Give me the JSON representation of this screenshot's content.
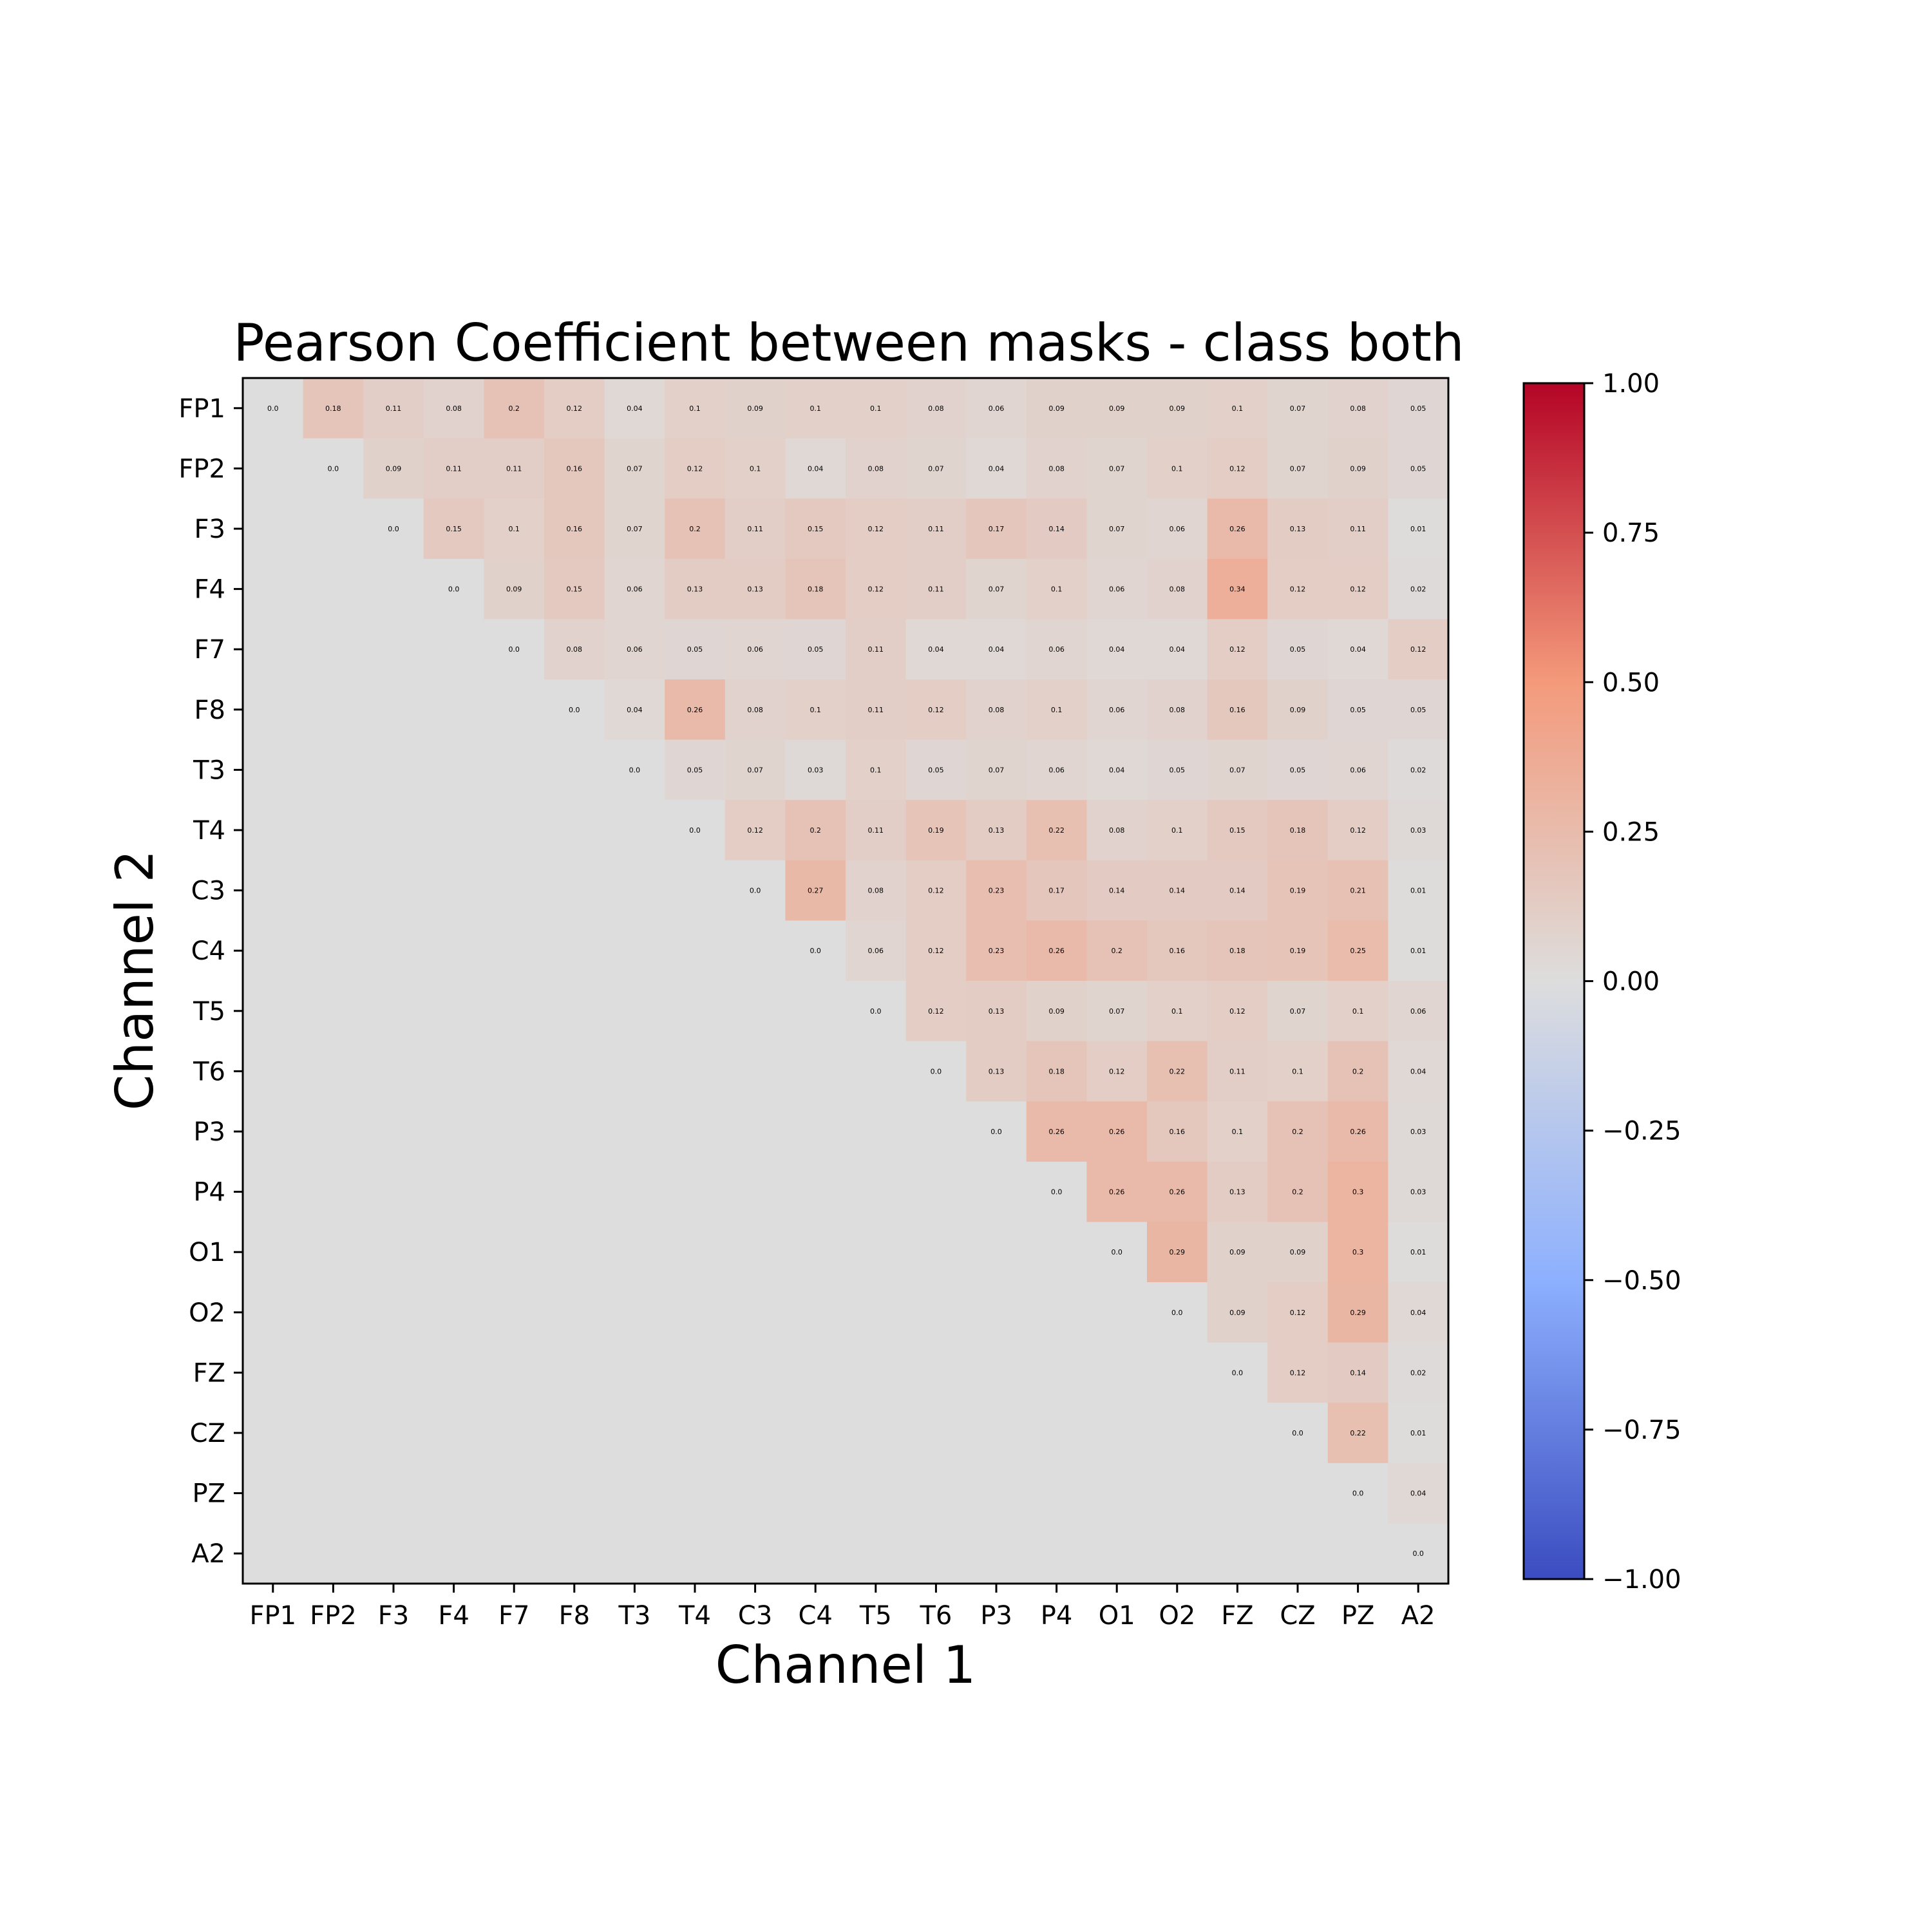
{
  "chart_data": {
    "type": "heatmap",
    "title": "Pearson Coefficient between masks - class both",
    "xlabel": "Channel 1",
    "ylabel": "Channel 2",
    "x_categories": [
      "FP1",
      "FP2",
      "F3",
      "F4",
      "F7",
      "F8",
      "T3",
      "T4",
      "C3",
      "C4",
      "T5",
      "T6",
      "P3",
      "P4",
      "O1",
      "O2",
      "FZ",
      "CZ",
      "PZ",
      "A2"
    ],
    "y_categories": [
      "FP1",
      "FP2",
      "F3",
      "F4",
      "F7",
      "F8",
      "T3",
      "T4",
      "C3",
      "C4",
      "T5",
      "T6",
      "P3",
      "P4",
      "O1",
      "O2",
      "FZ",
      "CZ",
      "PZ",
      "A2"
    ],
    "colormap": "coolwarm",
    "vmin": -1.0,
    "vmax": 1.0,
    "colorbar_ticks": [
      "1.00",
      "0.75",
      "0.50",
      "0.25",
      "0.00",
      "−0.25",
      "−0.50",
      "−0.75",
      "−1.00"
    ],
    "colorbar_tick_values": [
      1.0,
      0.75,
      0.5,
      0.25,
      0.0,
      -0.25,
      -0.5,
      -0.75,
      -1.0
    ],
    "values": [
      [
        "0.0",
        "0.18",
        "0.11",
        "0.08",
        "0.2",
        "0.12",
        "0.04",
        "0.1",
        "0.09",
        "0.1",
        "0.1",
        "0.08",
        "0.06",
        "0.09",
        "0.09",
        "0.09",
        "0.1",
        "0.07",
        "0.08",
        "0.05"
      ],
      [
        null,
        "0.0",
        "0.09",
        "0.11",
        "0.11",
        "0.16",
        "0.07",
        "0.12",
        "0.1",
        "0.04",
        "0.08",
        "0.07",
        "0.04",
        "0.08",
        "0.07",
        "0.1",
        "0.12",
        "0.07",
        "0.09",
        "0.05"
      ],
      [
        null,
        null,
        "0.0",
        "0.15",
        "0.1",
        "0.16",
        "0.07",
        "0.2",
        "0.11",
        "0.15",
        "0.12",
        "0.11",
        "0.17",
        "0.14",
        "0.07",
        "0.06",
        "0.26",
        "0.13",
        "0.11",
        "0.01"
      ],
      [
        null,
        null,
        null,
        "0.0",
        "0.09",
        "0.15",
        "0.06",
        "0.13",
        "0.13",
        "0.18",
        "0.12",
        "0.11",
        "0.07",
        "0.1",
        "0.06",
        "0.08",
        "0.34",
        "0.12",
        "0.12",
        "0.02"
      ],
      [
        null,
        null,
        null,
        null,
        "0.0",
        "0.08",
        "0.06",
        "0.05",
        "0.06",
        "0.05",
        "0.11",
        "0.04",
        "0.04",
        "0.06",
        "0.04",
        "0.04",
        "0.12",
        "0.05",
        "0.04",
        "0.12"
      ],
      [
        null,
        null,
        null,
        null,
        null,
        "0.0",
        "0.04",
        "0.26",
        "0.08",
        "0.1",
        "0.11",
        "0.12",
        "0.08",
        "0.1",
        "0.06",
        "0.08",
        "0.16",
        "0.09",
        "0.05",
        "0.05"
      ],
      [
        null,
        null,
        null,
        null,
        null,
        null,
        "0.0",
        "0.05",
        "0.07",
        "0.03",
        "0.1",
        "0.05",
        "0.07",
        "0.06",
        "0.04",
        "0.05",
        "0.07",
        "0.05",
        "0.06",
        "0.02"
      ],
      [
        null,
        null,
        null,
        null,
        null,
        null,
        null,
        "0.0",
        "0.12",
        "0.2",
        "0.11",
        "0.19",
        "0.13",
        "0.22",
        "0.08",
        "0.1",
        "0.15",
        "0.18",
        "0.12",
        "0.03"
      ],
      [
        null,
        null,
        null,
        null,
        null,
        null,
        null,
        null,
        "0.0",
        "0.27",
        "0.08",
        "0.12",
        "0.23",
        "0.17",
        "0.14",
        "0.14",
        "0.14",
        "0.19",
        "0.21",
        "0.01"
      ],
      [
        null,
        null,
        null,
        null,
        null,
        null,
        null,
        null,
        null,
        "0.0",
        "0.06",
        "0.12",
        "0.23",
        "0.26",
        "0.2",
        "0.16",
        "0.18",
        "0.19",
        "0.25",
        "0.01"
      ],
      [
        null,
        null,
        null,
        null,
        null,
        null,
        null,
        null,
        null,
        null,
        "0.0",
        "0.12",
        "0.13",
        "0.09",
        "0.07",
        "0.1",
        "0.12",
        "0.07",
        "0.1",
        "0.06"
      ],
      [
        null,
        null,
        null,
        null,
        null,
        null,
        null,
        null,
        null,
        null,
        null,
        "0.0",
        "0.13",
        "0.18",
        "0.12",
        "0.22",
        "0.11",
        "0.1",
        "0.2",
        "0.04"
      ],
      [
        null,
        null,
        null,
        null,
        null,
        null,
        null,
        null,
        null,
        null,
        null,
        null,
        "0.0",
        "0.26",
        "0.26",
        "0.16",
        "0.1",
        "0.2",
        "0.26",
        "0.03"
      ],
      [
        null,
        null,
        null,
        null,
        null,
        null,
        null,
        null,
        null,
        null,
        null,
        null,
        null,
        "0.0",
        "0.26",
        "0.26",
        "0.13",
        "0.2",
        "0.3",
        "0.03"
      ],
      [
        null,
        null,
        null,
        null,
        null,
        null,
        null,
        null,
        null,
        null,
        null,
        null,
        null,
        null,
        "0.0",
        "0.29",
        "0.09",
        "0.09",
        "0.3",
        "0.01"
      ],
      [
        null,
        null,
        null,
        null,
        null,
        null,
        null,
        null,
        null,
        null,
        null,
        null,
        null,
        null,
        null,
        "0.0",
        "0.09",
        "0.12",
        "0.29",
        "0.04"
      ],
      [
        null,
        null,
        null,
        null,
        null,
        null,
        null,
        null,
        null,
        null,
        null,
        null,
        null,
        null,
        null,
        null,
        "0.0",
        "0.12",
        "0.14",
        "0.02"
      ],
      [
        null,
        null,
        null,
        null,
        null,
        null,
        null,
        null,
        null,
        null,
        null,
        null,
        null,
        null,
        null,
        null,
        null,
        "0.0",
        "0.22",
        "0.01"
      ],
      [
        null,
        null,
        null,
        null,
        null,
        null,
        null,
        null,
        null,
        null,
        null,
        null,
        null,
        null,
        null,
        null,
        null,
        null,
        "0.0",
        "0.04"
      ],
      [
        null,
        null,
        null,
        null,
        null,
        null,
        null,
        null,
        null,
        null,
        null,
        null,
        null,
        null,
        null,
        null,
        null,
        null,
        null,
        "0.0"
      ]
    ],
    "grid": false,
    "legend": "colorbar-right"
  }
}
